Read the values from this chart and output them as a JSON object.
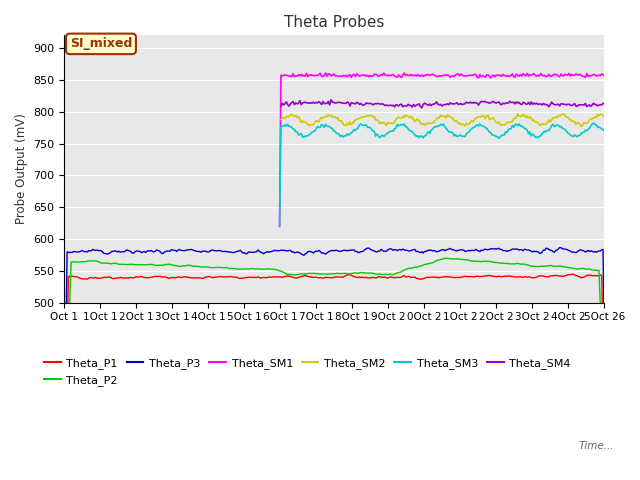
{
  "title": "Theta Probes",
  "ylabel": "Probe Output (mV)",
  "xlabel": "Time",
  "ylim": [
    500,
    920
  ],
  "yticks": [
    500,
    550,
    600,
    650,
    700,
    750,
    800,
    850,
    900
  ],
  "xtick_labels": [
    "Oct 1",
    "1Oct 1",
    "2Oct 1",
    "3Oct 1",
    "4Oct 1",
    "5Oct 1",
    "6Oct 1",
    "7Oct 1",
    "8Oct 1",
    "9Oct 2",
    "0Oct 2",
    "1Oct 2",
    "2Oct 2",
    "3Oct 2",
    "4Oct 2",
    "5Oct 26"
  ],
  "bg_color": "#e8e8e8",
  "annotation": "SI_mixed",
  "annotation_bg": "#ffffcc",
  "annotation_border": "#993300",
  "annotation_text_color": "#993300",
  "n_points": 400,
  "jump_index": 160,
  "legend_colors": {
    "Theta_P1": "#ff0000",
    "Theta_P2": "#00cc00",
    "Theta_P3": "#0000cc",
    "Theta_SM1": "#ff00ff",
    "Theta_SM2": "#cccc00",
    "Theta_SM3": "#00cccc",
    "Theta_SM4": "#9900cc"
  }
}
